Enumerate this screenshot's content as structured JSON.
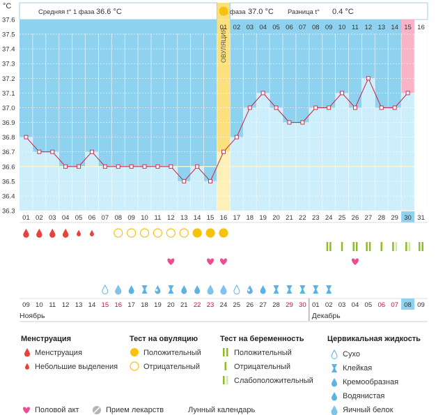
{
  "chart_data": {
    "type": "line",
    "unit_label": "°C",
    "y_ticks": [
      36.3,
      36.4,
      36.5,
      36.6,
      36.7,
      36.8,
      36.9,
      37,
      37.1,
      37.2,
      37.3,
      37.4,
      37.5,
      37.6
    ],
    "ylim": [
      36.3,
      37.6
    ],
    "phase1": {
      "label": "Средняя t° 1 фаза",
      "value": "36.6 °C"
    },
    "phase2": {
      "label": "2 фаза",
      "value": "37.0 °C"
    },
    "difference": {
      "label": "Разница t°",
      "value": "0.4 °C"
    },
    "ovulation_label": "ОВУЛЯЦИЯ",
    "ovulation_day": 16,
    "coverline": 36.6,
    "cycle_days": [
      "01",
      "02",
      "03",
      "04",
      "05",
      "06",
      "07",
      "08",
      "09",
      "10",
      "11",
      "12",
      "13",
      "14",
      "15",
      "16",
      "17",
      "18",
      "19",
      "20",
      "21",
      "22",
      "23",
      "24",
      "25",
      "26",
      "27",
      "28",
      "29",
      "30",
      "31"
    ],
    "post_ovulation_days": [
      "01",
      "02",
      "03",
      "04",
      "05",
      "06",
      "07",
      "08",
      "09",
      "10",
      "11",
      "12",
      "13",
      "14",
      "15",
      "16"
    ],
    "highlight_day": 30,
    "temperatures": [
      36.8,
      36.7,
      36.7,
      36.6,
      36.6,
      36.7,
      36.6,
      36.6,
      36.6,
      36.6,
      36.6,
      36.6,
      36.5,
      36.6,
      36.5,
      36.7,
      36.8,
      37.0,
      37.1,
      37.0,
      36.9,
      36.9,
      37.0,
      37.0,
      37.1,
      37.0,
      37.2,
      37.0,
      37.0,
      37.1
    ],
    "dates": [
      "09",
      "10",
      "11",
      "12",
      "13",
      "14",
      "15",
      "16",
      "17",
      "18",
      "19",
      "20",
      "21",
      "22",
      "23",
      "24",
      "25",
      "26",
      "27",
      "28",
      "29",
      "30",
      "01",
      "02",
      "03",
      "04",
      "05",
      "06",
      "07",
      "08",
      "09"
    ],
    "weekend_days": [
      6,
      7,
      13,
      14,
      20,
      21,
      27,
      28
    ],
    "month_start": "Ноябрь",
    "month_next": "Декабрь",
    "menstruation": [
      2,
      2,
      2,
      2,
      1,
      1,
      0,
      0,
      0,
      0,
      0,
      0,
      0,
      0,
      0,
      0,
      0,
      0,
      0,
      0,
      0,
      0,
      0,
      0,
      0,
      0,
      0,
      0,
      0,
      0,
      0
    ],
    "ovulation_test": [
      0,
      0,
      0,
      0,
      0,
      0,
      0,
      2,
      2,
      2,
      2,
      2,
      2,
      1,
      1,
      1,
      0,
      0,
      0,
      0,
      0,
      0,
      0,
      0,
      0,
      0,
      0,
      0,
      0,
      0,
      0
    ],
    "pregnancy_test": [
      0,
      0,
      0,
      0,
      0,
      0,
      0,
      0,
      0,
      0,
      0,
      0,
      0,
      0,
      0,
      0,
      0,
      0,
      0,
      0,
      0,
      0,
      0,
      1,
      2,
      1,
      1,
      2,
      3,
      3,
      1
    ],
    "intercourse_days": [
      12,
      15,
      16,
      26
    ],
    "moon_day": 11,
    "cervical_fluid": [
      0,
      0,
      0,
      0,
      0,
      0,
      1,
      5,
      4,
      2,
      3,
      2,
      4,
      4,
      5,
      5,
      1,
      3,
      4,
      2,
      2,
      2,
      2,
      2,
      0,
      0,
      0,
      0,
      0,
      0,
      0
    ],
    "colors": {
      "sky": "#8fd2f0",
      "bar": "#cdeefb",
      "line": "#c8304f",
      "ovulation_band": "#fde07e",
      "highlight": "#f8b4c6",
      "menstruation": "#e8433b",
      "ovulation_test": "#f6c20c",
      "pregnancy_test": "#8cbe1d",
      "intercourse": "#ec4d92",
      "cervical": "#5cb2e2",
      "moon": "#f29a14"
    }
  },
  "legend": {
    "menstruation": {
      "title": "Менструация",
      "items": [
        "Менструация",
        "Небольшие выделения"
      ]
    },
    "ovulation_test": {
      "title": "Тест на овуляцию",
      "items": [
        "Положительный",
        "Отрицательный"
      ]
    },
    "pregnancy_test": {
      "title": "Тест на беременность",
      "items": [
        "Положительный",
        "Отрицательный",
        "Слабоположительный"
      ]
    },
    "cervical": {
      "title": "Цервикальная жидкость",
      "items": [
        "Сухо",
        "Клейкая",
        "Кремообразная",
        "Водянистая",
        "Яичный белок"
      ]
    },
    "intercourse": "Половой акт",
    "medication": "Прием лекарств",
    "lunar": "Лунный календарь"
  }
}
